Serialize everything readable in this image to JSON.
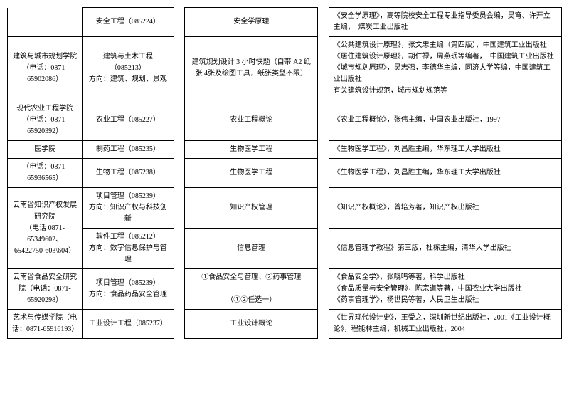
{
  "rows": [
    {
      "col1": "",
      "col2": "安全工程（085224）",
      "col4": "安全学原理",
      "col6": "《安全学原理》，高等院校安全工程专业指导委员会编，吴穹、许开立主编，　煤炭工业出版社"
    },
    {
      "col1": "建筑与城市规划学院（电话：0871-65902086）",
      "col2": "建筑与土木工程（085213）\n方向：建筑、规划、景观",
      "col4": "建筑规划设计 3 小时快题（自带 A2 纸张 4张及绘图工具，纸张类型不限）",
      "col6": "《公共建筑设计原理》，张文忠主编（第四版），中国建筑工业出版社\n《居住建筑设计原理》，胡仁禄，周燕珉等编著，　中国建筑工业出版社\n《城市规划原理》，吴志强，李德华主编，同济大学等编，中国建筑工业出版社\n有关建筑设计规范，城市规划规范等"
    },
    {
      "col1": "现代农业工程学院（电话：0871-65920392）",
      "col2": "农业工程（085227）",
      "col4": "农业工程概论",
      "col6": "《农业工程概论》，张伟主编，中国农业出版社，1997"
    },
    {
      "col1": "医学院",
      "col2": "制药工程（085235）",
      "col4": "生物医学工程",
      "col6": "《生物医学工程》，刘昌胜主编，华东理工大学出版社"
    },
    {
      "col1": "（电话：0871-65936565）",
      "col2": "生物工程（085238）",
      "col4": "生物医学工程",
      "col6": "《生物医学工程》，刘昌胜主编，华东理工大学出版社"
    },
    {
      "col1": "云南省知识产权发展研究院\n（电话 0871-65349602、65422750-603\\604）",
      "col1_rowspan": 2,
      "col2": "项目管理（085239）\n方向：知识产权与科技创新",
      "col4": "知识产权管理",
      "col6": "《知识产权概论》，曾培芳著，知识产权出版社"
    },
    {
      "col2": "软件工程（085212）\n方向：数字信息保护与管理",
      "col4": "信息管理",
      "col6": "《信息管理学教程》第三版，杜栋主编，清华大学出版社"
    },
    {
      "col1": "云南省食品安全研究院（电话：0871-65920298）",
      "col2": "项目管理（085239）\n方向：食品药品安全管理",
      "col4": "①食品安全与管理、②药事管理\n\n（①②任选一）",
      "col6": "《食品安全学》，张晓鸣等著，科学出版社\n《食品质量与安全管理》，陈宗道等著，中国农业大学出版社\n《药事管理学》，杨世民等著，人民卫生出版社"
    },
    {
      "col1": "艺术与传媒学院（电话：0871-65916193）",
      "col2": "工业设计工程（085237）",
      "col4": "工业设计概论",
      "col6": "《世界现代设计史》，王受之，深圳新世纪出版社，2001《工业设计概论》，程能林主编，机械工业出版社，2004"
    }
  ]
}
